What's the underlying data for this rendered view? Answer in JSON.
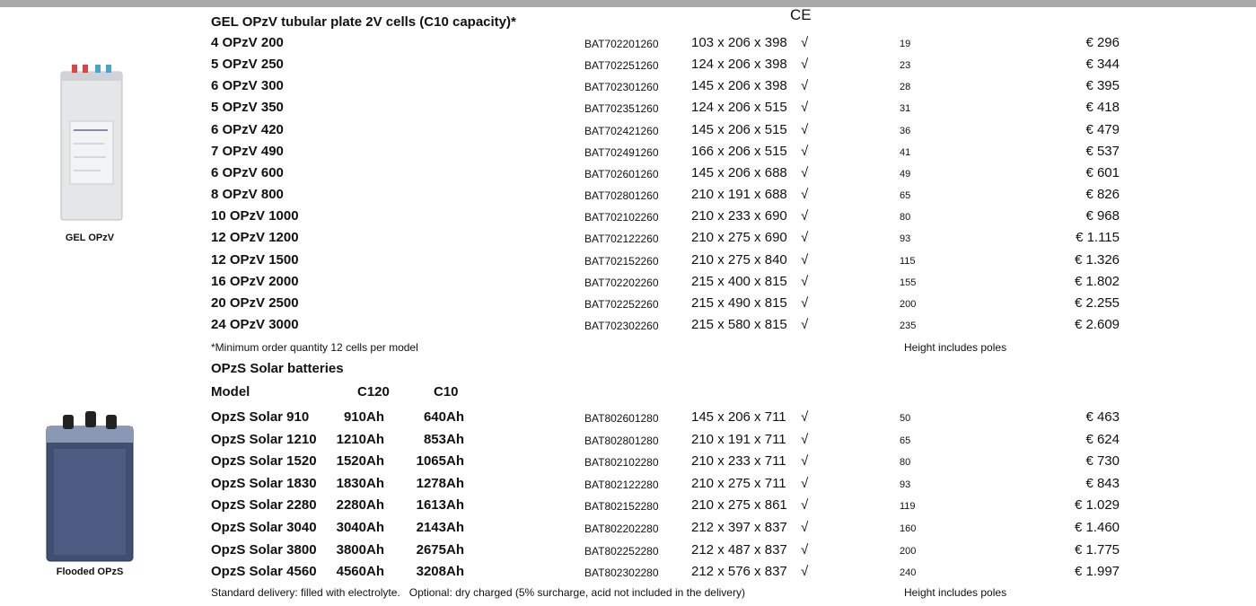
{
  "ce_mark": "CE",
  "gel": {
    "title": "GEL OPzV tubular plate 2V cells (C10 capacity)*",
    "image_label": "GEL OPzV",
    "rows": [
      [
        "4 OPzV 200",
        "BAT702201260",
        "103 x 206 x 398",
        "√",
        "19",
        "€ 296"
      ],
      [
        "5 OPzV 250",
        "BAT702251260",
        "124 x 206 x 398",
        "√",
        "23",
        "€ 344"
      ],
      [
        "6 OPzV 300",
        "BAT702301260",
        "145 x 206 x 398",
        "√",
        "28",
        "€ 395"
      ],
      [
        "5 OPzV 350",
        "BAT702351260",
        "124 x 206 x 515",
        "√",
        "31",
        "€ 418"
      ],
      [
        "6 OPzV 420",
        "BAT702421260",
        "145 x 206 x 515",
        "√",
        "36",
        "€ 479"
      ],
      [
        "7 OPzV 490",
        "BAT702491260",
        "166 x 206 x 515",
        "√",
        "41",
        "€ 537"
      ],
      [
        "6 OPzV 600",
        "BAT702601260",
        "145 x 206 x 688",
        "√",
        "49",
        "€ 601"
      ],
      [
        "8 OPzV 800",
        "BAT702801260",
        "210 x 191 x 688",
        "√",
        "65",
        "€ 826"
      ],
      [
        "10 OPzV 1000",
        "BAT702102260",
        "210 x 233 x 690",
        "√",
        "80",
        "€ 968"
      ],
      [
        "12 OPzV 1200",
        "BAT702122260",
        "210 x 275 x 690",
        "√",
        "93",
        "€ 1.115"
      ],
      [
        "12 OPzV 1500",
        "BAT702152260",
        "210 x 275 x 840",
        "√",
        "115",
        "€ 1.326"
      ],
      [
        "16 OPzV 2000",
        "BAT702202260",
        "215 x 400 x 815",
        "√",
        "155",
        "€ 1.802"
      ],
      [
        "20 OPzV 2500",
        "BAT702252260",
        "215 x 490 x 815",
        "√",
        "200",
        "€ 2.255"
      ],
      [
        "24 OPzV 3000",
        "BAT702302260",
        "215 x 580 x 815",
        "√",
        "235",
        "€ 2.609"
      ]
    ],
    "note": "*Minimum order quantity 12 cells per model",
    "note_right": "Height includes poles"
  },
  "opzs": {
    "title": "OPzS Solar batteries",
    "header": [
      "Model",
      "C120",
      "C10"
    ],
    "image_label": "Flooded OPzS",
    "rows": [
      [
        "OpzS Solar 910",
        "910Ah",
        "640Ah",
        "BAT802601280",
        "145 x 206 x 711",
        "√",
        "50",
        "€ 463"
      ],
      [
        "OpzS Solar 1210",
        "1210Ah",
        "853Ah",
        "BAT802801280",
        "210 x 191 x 711",
        "√",
        "65",
        "€ 624"
      ],
      [
        "OpzS Solar 1520",
        "1520Ah",
        "1065Ah",
        "BAT802102280",
        "210 x 233 x 711",
        "√",
        "80",
        "€ 730"
      ],
      [
        "OpzS Solar 1830",
        "1830Ah",
        "1278Ah",
        "BAT802122280",
        "210 x 275 x 711",
        "√",
        "93",
        "€ 843"
      ],
      [
        "OpzS Solar 2280",
        "2280Ah",
        "1613Ah",
        "BAT802152280",
        "210 x 275 x 861",
        "√",
        "119",
        "€ 1.029"
      ],
      [
        "OpzS Solar 3040",
        "3040Ah",
        "2143Ah",
        "BAT802202280",
        "212 x 397 x 837",
        "√",
        "160",
        "€ 1.460"
      ],
      [
        "OpzS Solar 3800",
        "3800Ah",
        "2675Ah",
        "BAT802252280",
        "212 x 487 x 837",
        "√",
        "200",
        "€ 1.775"
      ],
      [
        "OpzS Solar 4560",
        "4560Ah",
        "3208Ah",
        "BAT802302280",
        "212 x 576 x 837",
        "√",
        "240",
        "€ 1.997"
      ]
    ],
    "note": "Standard delivery: filled with electrolyte.   Optional: dry charged (5% surcharge, acid not included in the delivery)",
    "note_right": "Height includes poles"
  }
}
